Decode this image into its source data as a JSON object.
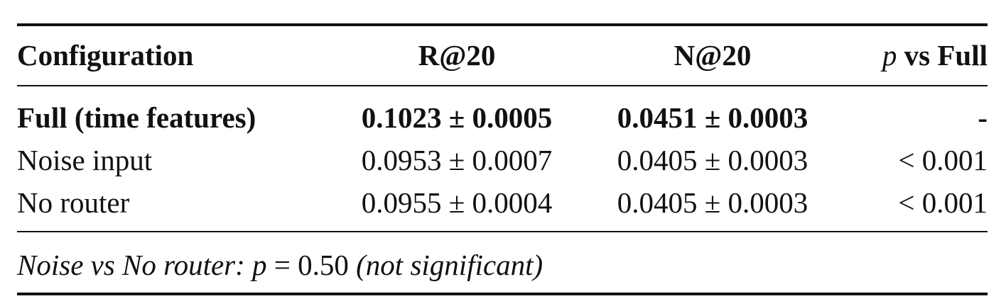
{
  "table": {
    "header": [
      "Configuration",
      "R@20",
      "N@20",
      {
        "symbol": "p",
        "rest": "vs Full"
      }
    ],
    "rows": [
      [
        "Full (time features)",
        "0.1023 ± 0.0005",
        "0.0451 ± 0.0003",
        "-"
      ],
      [
        "Noise input",
        "0.0953 ± 0.0007",
        "0.0405 ± 0.0003",
        "< 0.001"
      ],
      [
        "No router",
        "0.0955 ± 0.0004",
        "0.0405 ± 0.0003",
        "< 0.001"
      ]
    ],
    "note": {
      "lead": "Noise vs No router:",
      "symbol": "p",
      "value": "= 0.50",
      "tail": "(not significant)"
    }
  }
}
